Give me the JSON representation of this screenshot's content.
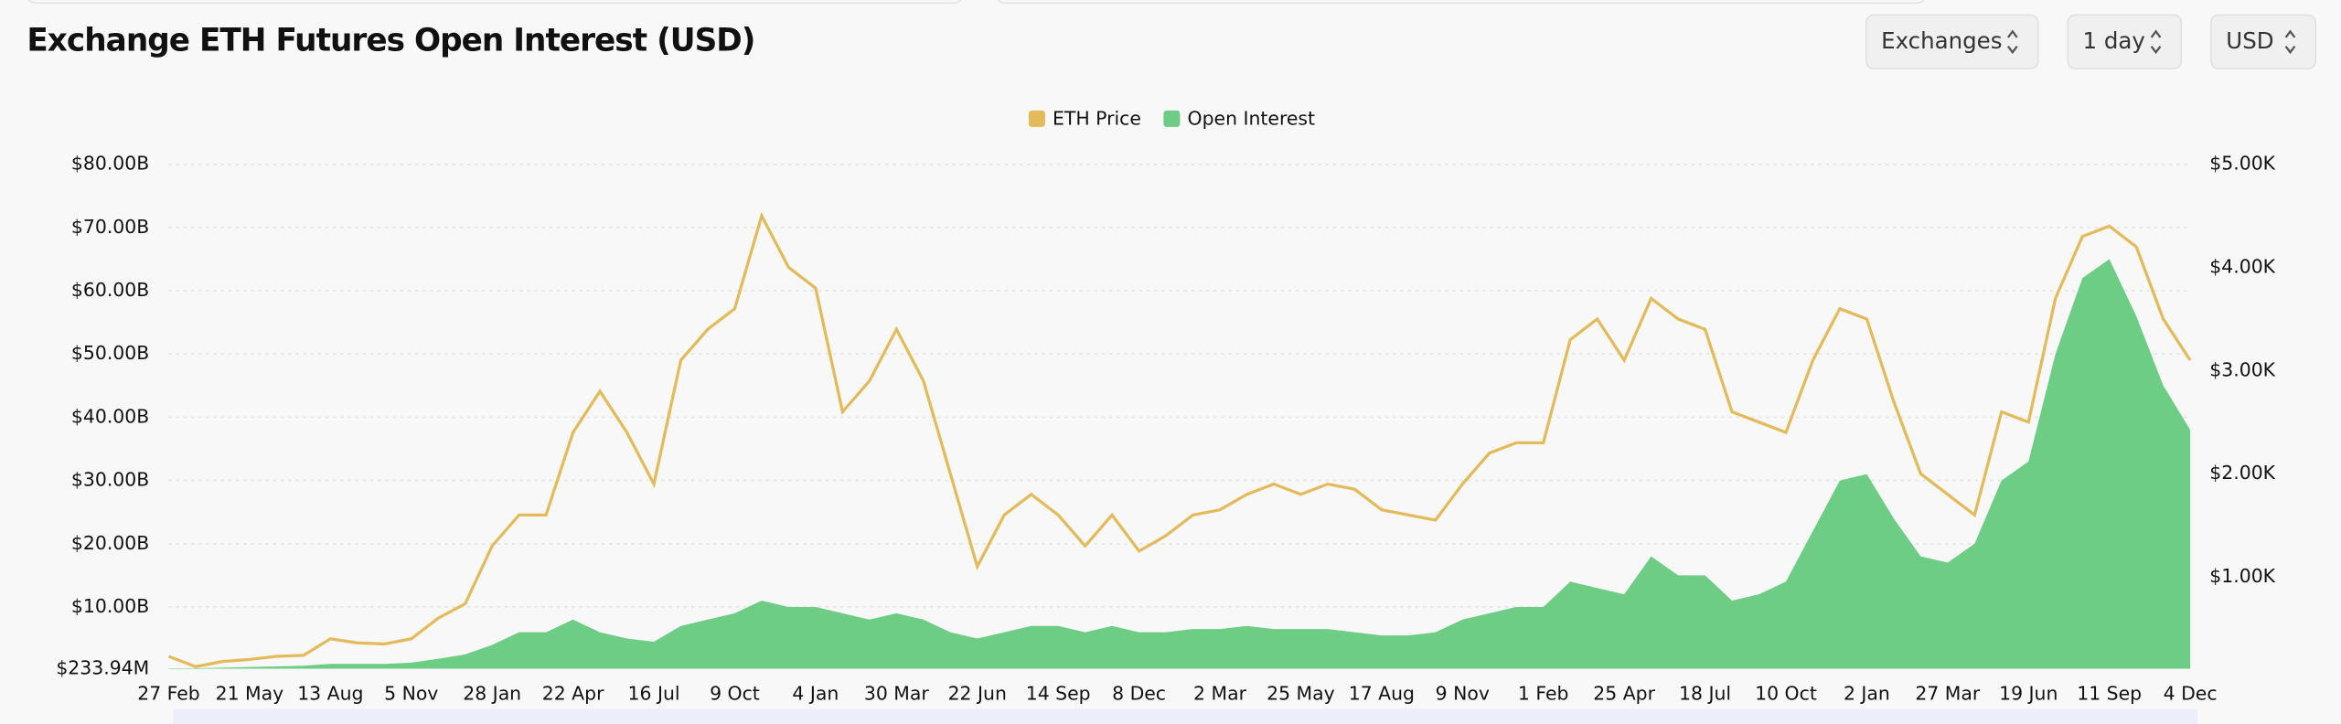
{
  "chart_data": {
    "type": "line",
    "title": "Exchange ETH Futures Open Interest (USD)",
    "categories": [
      "27 Feb",
      null,
      null,
      "21 May",
      null,
      null,
      "13 Aug",
      null,
      null,
      "5 Nov",
      null,
      null,
      "28 Jan",
      null,
      null,
      "22 Apr",
      null,
      null,
      "16 Jul",
      null,
      null,
      "9 Oct",
      null,
      null,
      "4 Jan",
      null,
      null,
      "30 Mar",
      null,
      null,
      "22 Jun",
      null,
      null,
      "14 Sep",
      null,
      null,
      "8 Dec",
      null,
      null,
      "2 Mar",
      null,
      null,
      "25 May",
      null,
      null,
      "17 Aug",
      null,
      null,
      "9 Nov",
      null,
      null,
      "1 Feb",
      null,
      null,
      "25 Apr",
      null,
      null,
      "18 Jul",
      null,
      null,
      "10 Oct",
      null,
      null,
      "2 Jan",
      null,
      null,
      "27 Mar",
      null,
      null,
      "19 Jun",
      null,
      null,
      "11 Sep",
      null,
      null,
      "4 Dec"
    ],
    "series": [
      {
        "name": "Open Interest",
        "color": "#6dcd85",
        "kind": "area",
        "values": [
          0.3,
          0.3,
          0.4,
          0.5,
          0.6,
          0.7,
          1.0,
          1.0,
          1.0,
          1.2,
          1.8,
          2.5,
          4,
          6,
          6,
          8,
          6,
          5,
          4.5,
          7,
          8,
          9,
          11,
          10,
          10,
          9,
          8,
          9,
          8,
          6,
          5,
          6,
          7,
          7,
          6,
          7,
          6,
          6,
          6.5,
          6.5,
          7,
          6.5,
          6.5,
          6.5,
          6,
          5.5,
          5.5,
          6,
          8,
          9,
          10,
          10,
          14,
          13,
          12,
          18,
          15,
          15,
          11,
          12,
          14,
          22,
          30,
          31,
          24,
          18,
          17,
          20,
          30,
          33,
          50,
          62,
          65,
          56,
          45,
          38
        ]
      },
      {
        "name": "ETH Price",
        "color": "#e3bb5a",
        "kind": "line",
        "axis": "y2",
        "values": [
          230,
          130,
          180,
          200,
          230,
          240,
          400,
          360,
          350,
          400,
          600,
          740,
          1300,
          1600,
          1600,
          2400,
          2800,
          2400,
          1900,
          3100,
          3400,
          3600,
          4500,
          4000,
          3800,
          2600,
          2900,
          3400,
          2900,
          2000,
          1100,
          1600,
          1800,
          1600,
          1300,
          1600,
          1250,
          1400,
          1600,
          1650,
          1800,
          1900,
          1800,
          1900,
          1850,
          1650,
          1600,
          1550,
          1900,
          2200,
          2300,
          2300,
          3300,
          3500,
          3100,
          3700,
          3500,
          3400,
          2600,
          2500,
          2400,
          3100,
          3600,
          3500,
          2700,
          2000,
          1800,
          1600,
          2600,
          2500,
          3700,
          4300,
          4400,
          4200,
          3500,
          3100
        ]
      }
    ],
    "legend_order": [
      1,
      0
    ],
    "ylim": [
      0.23394,
      80
    ],
    "yticks": [
      {
        "value": 0.23394,
        "label": "$233.94M"
      },
      {
        "value": 10,
        "label": "$10.00B"
      },
      {
        "value": 20,
        "label": "$20.00B"
      },
      {
        "value": 30,
        "label": "$30.00B"
      },
      {
        "value": 40,
        "label": "$40.00B"
      },
      {
        "value": 50,
        "label": "$50.00B"
      },
      {
        "value": 60,
        "label": "$60.00B"
      },
      {
        "value": 70,
        "label": "$70.00B"
      },
      {
        "value": 80,
        "label": "$80.00B"
      }
    ],
    "y2lim": [
      110,
      5000
    ],
    "y2ticks": [
      {
        "value": 1000,
        "label": "$1.00K"
      },
      {
        "value": 2000,
        "label": "$2.00K"
      },
      {
        "value": 3000,
        "label": "$3.00K"
      },
      {
        "value": 4000,
        "label": "$4.00K"
      },
      {
        "value": 5000,
        "label": "$5.00K"
      }
    ],
    "grid": true
  },
  "controls": [
    "Exchanges",
    "1 day",
    "USD"
  ]
}
